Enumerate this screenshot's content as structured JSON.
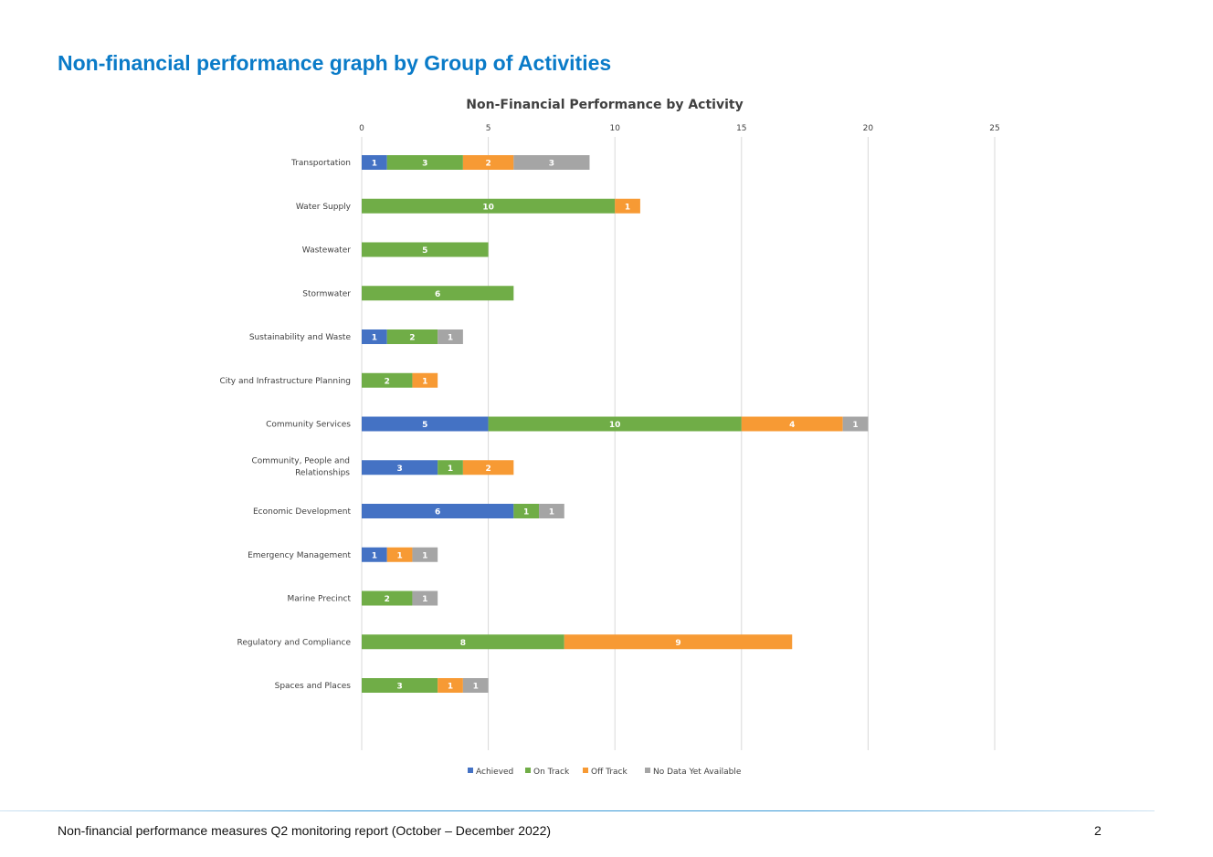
{
  "page": {
    "heading": "Non-financial performance graph by Group of Activities",
    "footer": "Non-financial performance measures Q2 monitoring report (October – December 2022)",
    "page_number": "2"
  },
  "chart_data": {
    "type": "bar",
    "orientation": "horizontal",
    "stacked": true,
    "title": "Non-Financial Performance by Activity",
    "xlabel": "",
    "ylabel": "",
    "xlim": [
      0,
      25
    ],
    "xticks": [
      0,
      5,
      10,
      15,
      20,
      25
    ],
    "grid": true,
    "legend_position": "bottom",
    "categories": [
      "Transportation",
      "Water Supply",
      "Wastewater",
      "Stormwater",
      "Sustainability and Waste",
      "City and Infrastructure Planning",
      "Community Services",
      "Community, People and Relationships",
      "Economic Development",
      "Emergency Management",
      "Marine Precinct",
      "Regulatory and Compliance",
      "Spaces and Places"
    ],
    "series": [
      {
        "name": "Achieved",
        "color": "#4472c4",
        "values": [
          1,
          0,
          0,
          0,
          1,
          0,
          5,
          3,
          6,
          1,
          0,
          0,
          0
        ]
      },
      {
        "name": "On Track",
        "color": "#70ad47",
        "values": [
          3,
          10,
          5,
          6,
          2,
          2,
          10,
          1,
          1,
          0,
          2,
          8,
          3
        ]
      },
      {
        "name": "Off Track",
        "color": "#f79a34",
        "values": [
          2,
          1,
          0,
          0,
          0,
          1,
          4,
          2,
          0,
          1,
          0,
          9,
          1
        ]
      },
      {
        "name": "No Data Yet Available",
        "color": "#a5a5a5",
        "values": [
          3,
          0,
          0,
          0,
          1,
          0,
          1,
          0,
          1,
          1,
          1,
          0,
          1
        ]
      }
    ]
  },
  "colors": {
    "heading": "#0a7bc8",
    "label_text": "#ffffff",
    "axis_text": "#404040",
    "gridline": "#d9d9d9"
  }
}
